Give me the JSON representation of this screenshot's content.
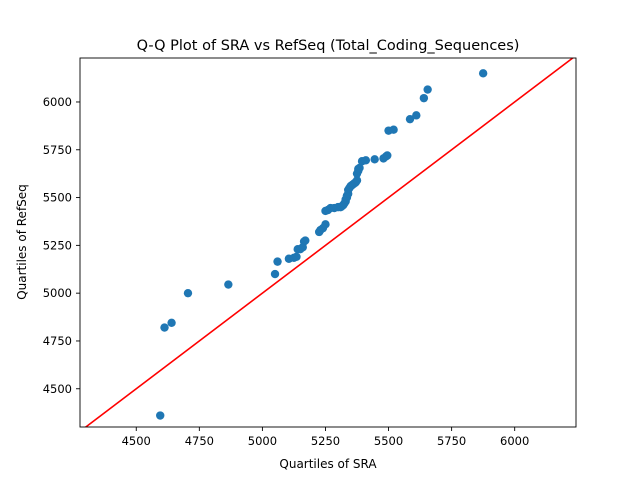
{
  "chart_data": {
    "type": "scatter",
    "title": "Q-Q Plot of SRA vs RefSeq (Total_Coding_Sequences)",
    "xlabel": "Quartiles of SRA",
    "ylabel": "Quartiles of RefSeq",
    "xlim": [
      4277,
      6243
    ],
    "ylim": [
      4300,
      6230
    ],
    "xticks": [
      4500,
      4750,
      5000,
      5250,
      5500,
      5750,
      6000
    ],
    "yticks": [
      4500,
      4750,
      5000,
      5250,
      5500,
      5750,
      6000
    ],
    "grid": false,
    "legend": "none",
    "colors": {
      "points": "#1f77b4",
      "reference_line": "#ff0000"
    },
    "reference_line": {
      "from": [
        4277,
        4277
      ],
      "to": [
        6243,
        6243
      ]
    },
    "series": [
      {
        "x": [
          4595,
          4612,
          4640,
          4705,
          4865,
          5050,
          5060,
          5105,
          5125,
          5135,
          5140,
          5150,
          5160,
          5165,
          5170,
          5225,
          5230,
          5240,
          5250,
          5250,
          5260,
          5270,
          5285,
          5300,
          5310,
          5315,
          5320,
          5325,
          5330,
          5330,
          5335,
          5335,
          5340,
          5340,
          5345,
          5350,
          5355,
          5360,
          5365,
          5370,
          5375,
          5375,
          5380,
          5380,
          5385,
          5395,
          5410,
          5445,
          5480,
          5490,
          5495,
          5500,
          5520,
          5585,
          5610,
          5640,
          5655,
          5875
        ],
        "y": [
          4360,
          4820,
          4845,
          5000,
          5045,
          5100,
          5165,
          5180,
          5185,
          5190,
          5230,
          5230,
          5240,
          5270,
          5275,
          5320,
          5330,
          5340,
          5360,
          5430,
          5435,
          5445,
          5445,
          5450,
          5450,
          5455,
          5460,
          5470,
          5480,
          5490,
          5500,
          5510,
          5520,
          5540,
          5550,
          5560,
          5565,
          5570,
          5575,
          5580,
          5590,
          5625,
          5640,
          5650,
          5655,
          5690,
          5695,
          5700,
          5705,
          5715,
          5720,
          5850,
          5855,
          5910,
          5930,
          6020,
          6065,
          6150
        ]
      }
    ]
  }
}
